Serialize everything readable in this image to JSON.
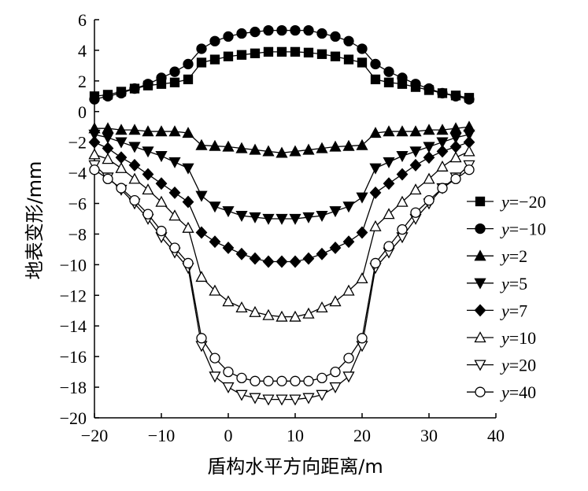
{
  "chart_data": {
    "type": "line",
    "title": "",
    "xlabel": "盾构水平方向距离/m",
    "ylabel": "地表变形/mm",
    "xlim": [
      -20,
      40
    ],
    "ylim": [
      -20,
      6
    ],
    "xticks": [
      "−20",
      "−10",
      "0",
      "10",
      "20",
      "30",
      "40"
    ],
    "yticks": [
      "6",
      "4",
      "2",
      "0",
      "−2",
      "−4",
      "−6",
      "−8",
      "−10",
      "−12",
      "−14",
      "−16",
      "−18",
      "−20"
    ],
    "grid": false,
    "legend_position": "right",
    "series": [
      {
        "name": "y=−20",
        "legend_prefix": "y",
        "legend_suffix": "=−20",
        "marker": "square",
        "x": [
          -20,
          -18,
          -16,
          -14,
          -12,
          -10,
          -8,
          -6,
          -4,
          -2,
          0,
          2,
          4,
          6,
          8,
          10,
          12,
          14,
          16,
          18,
          20,
          22,
          24,
          26,
          28,
          30,
          32,
          34,
          36
        ],
        "y": [
          1.0,
          1.1,
          1.3,
          1.5,
          1.7,
          1.8,
          1.9,
          2.1,
          3.2,
          3.4,
          3.6,
          3.7,
          3.8,
          3.9,
          3.9,
          3.9,
          3.85,
          3.75,
          3.6,
          3.4,
          3.2,
          2.1,
          1.9,
          1.8,
          1.6,
          1.4,
          1.2,
          1.05,
          0.9
        ]
      },
      {
        "name": "y=−10",
        "legend_prefix": "y",
        "legend_suffix": "=−10",
        "marker": "circle",
        "x": [
          -20,
          -18,
          -16,
          -14,
          -12,
          -10,
          -8,
          -6,
          -4,
          -2,
          0,
          2,
          4,
          6,
          8,
          10,
          12,
          14,
          16,
          18,
          20,
          22,
          24,
          26,
          28,
          30,
          32,
          34,
          36
        ],
        "y": [
          0.8,
          1.0,
          1.2,
          1.5,
          1.8,
          2.2,
          2.6,
          3.1,
          4.1,
          4.6,
          4.9,
          5.1,
          5.2,
          5.3,
          5.3,
          5.3,
          5.3,
          5.1,
          4.9,
          4.6,
          4.1,
          3.1,
          2.6,
          2.2,
          1.8,
          1.5,
          1.2,
          1.0,
          0.8
        ]
      },
      {
        "name": "y=2",
        "legend_prefix": "y",
        "legend_suffix": "=2",
        "marker": "triangle-up",
        "x": [
          -20,
          -18,
          -16,
          -14,
          -12,
          -10,
          -8,
          -6,
          -4,
          -2,
          0,
          2,
          4,
          6,
          8,
          10,
          12,
          14,
          16,
          18,
          20,
          22,
          24,
          26,
          28,
          30,
          32,
          34,
          36
        ],
        "y": [
          -1.1,
          -1.1,
          -1.2,
          -1.2,
          -1.3,
          -1.3,
          -1.3,
          -1.4,
          -2.2,
          -2.25,
          -2.3,
          -2.4,
          -2.5,
          -2.6,
          -2.7,
          -2.6,
          -2.5,
          -2.4,
          -2.3,
          -2.25,
          -2.2,
          -1.4,
          -1.3,
          -1.3,
          -1.3,
          -1.2,
          -1.2,
          -1.1,
          -1.0
        ]
      },
      {
        "name": "y=5",
        "legend_prefix": "y",
        "legend_suffix": "=5",
        "marker": "triangle-down",
        "x": [
          -20,
          -18,
          -16,
          -14,
          -12,
          -10,
          -8,
          -6,
          -4,
          -2,
          0,
          2,
          4,
          6,
          8,
          10,
          12,
          14,
          16,
          18,
          20,
          22,
          24,
          26,
          28,
          30,
          32,
          34,
          36
        ],
        "y": [
          -1.5,
          -1.7,
          -2.0,
          -2.3,
          -2.6,
          -2.9,
          -3.3,
          -3.7,
          -5.5,
          -6.2,
          -6.5,
          -6.8,
          -6.9,
          -7.0,
          -7.0,
          -7.0,
          -6.9,
          -6.8,
          -6.5,
          -6.2,
          -5.6,
          -3.7,
          -3.3,
          -2.9,
          -2.6,
          -2.3,
          -2.0,
          -1.7,
          -1.5
        ]
      },
      {
        "name": "y=7",
        "legend_prefix": "y",
        "legend_suffix": "=7",
        "marker": "diamond",
        "x": [
          -20,
          -18,
          -16,
          -14,
          -12,
          -10,
          -8,
          -6,
          -4,
          -2,
          0,
          2,
          4,
          6,
          8,
          10,
          12,
          14,
          16,
          18,
          20,
          22,
          24,
          26,
          28,
          30,
          32,
          34,
          36
        ],
        "y": [
          -2.0,
          -2.4,
          -3.0,
          -3.5,
          -4.1,
          -4.7,
          -5.3,
          -5.9,
          -7.9,
          -8.5,
          -8.9,
          -9.3,
          -9.6,
          -9.8,
          -9.8,
          -9.8,
          -9.6,
          -9.3,
          -8.9,
          -8.5,
          -7.9,
          -5.3,
          -4.7,
          -4.1,
          -3.5,
          -3.0,
          -2.6,
          -2.3,
          -2.0
        ]
      },
      {
        "name": "y=10",
        "legend_prefix": "y",
        "legend_suffix": "=10",
        "marker": "open-triangle-up",
        "x": [
          -20,
          -18,
          -16,
          -14,
          -12,
          -10,
          -8,
          -6,
          -4,
          -2,
          0,
          2,
          4,
          6,
          8,
          10,
          12,
          14,
          16,
          18,
          20,
          22,
          24,
          26,
          28,
          30,
          32,
          34,
          36
        ],
        "y": [
          -2.8,
          -3.1,
          -3.7,
          -4.4,
          -5.1,
          -5.9,
          -6.8,
          -7.6,
          -10.8,
          -11.7,
          -12.4,
          -12.8,
          -13.1,
          -13.3,
          -13.4,
          -13.4,
          -13.2,
          -12.8,
          -12.4,
          -11.7,
          -10.9,
          -7.5,
          -6.7,
          -5.9,
          -5.1,
          -4.4,
          -3.6,
          -3.0,
          -2.6
        ]
      },
      {
        "name": "y=20",
        "legend_prefix": "y",
        "legend_suffix": "=20",
        "marker": "open-triangle-down",
        "x": [
          -20,
          -18,
          -16,
          -14,
          -12,
          -10,
          -8,
          -6,
          -4,
          -2,
          0,
          2,
          4,
          6,
          8,
          10,
          12,
          14,
          16,
          18,
          20,
          22,
          24,
          26,
          28,
          30,
          32,
          34,
          36
        ],
        "y": [
          -3.5,
          -4.3,
          -5.1,
          -6.0,
          -7.0,
          -8.2,
          -9.2,
          -10.2,
          -15.3,
          -17.3,
          -18.0,
          -18.5,
          -18.7,
          -18.8,
          -18.8,
          -18.8,
          -18.7,
          -18.5,
          -18.0,
          -17.3,
          -15.3,
          -10.2,
          -9.2,
          -8.2,
          -7.0,
          -6.0,
          -5.0,
          -4.3,
          -3.5
        ]
      },
      {
        "name": "y=40",
        "legend_prefix": "y",
        "legend_suffix": "=40",
        "marker": "open-circle",
        "x": [
          -20,
          -18,
          -16,
          -14,
          -12,
          -10,
          -8,
          -6,
          -4,
          -2,
          0,
          2,
          4,
          6,
          8,
          10,
          12,
          14,
          16,
          18,
          20,
          22,
          24,
          26,
          28,
          30,
          32,
          34,
          36
        ],
        "y": [
          -3.8,
          -4.4,
          -5.0,
          -5.8,
          -6.7,
          -7.8,
          -8.9,
          -9.9,
          -14.8,
          -16.1,
          -17.0,
          -17.4,
          -17.6,
          -17.6,
          -17.6,
          -17.6,
          -17.6,
          -17.4,
          -17.0,
          -16.1,
          -14.8,
          -9.9,
          -8.8,
          -7.7,
          -6.6,
          -5.8,
          -5.0,
          -4.4,
          -3.8
        ]
      }
    ]
  }
}
